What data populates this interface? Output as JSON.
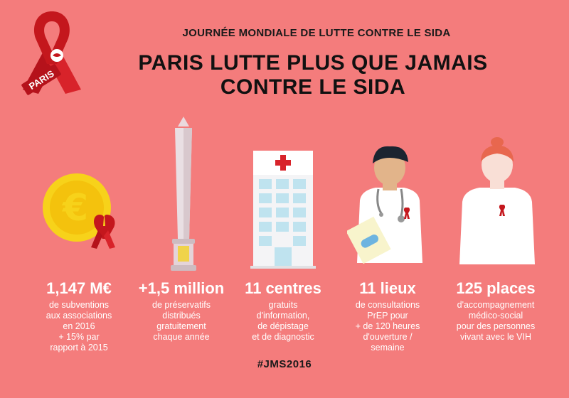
{
  "header": {
    "logo_text": "PARIS",
    "subtitle": "JOURNÉE MONDIALE DE LUTTE CONTRE LE SIDA",
    "title_line1": "PARIS LUTTE PLUS QUE JAMAIS",
    "title_line2": "CONTRE LE SIDA"
  },
  "stats": [
    {
      "value": "1,147 M€",
      "description": "de subventions\naux associations\nen 2016\n+ 15% par\nrapport à 2015"
    },
    {
      "value": "+1,5 million",
      "description": "de préservatifs\ndistribués\ngratuitement\nchaque année"
    },
    {
      "value": "11 centres",
      "description": "gratuits\nd'information,\nde dépistage\net de diagnostic"
    },
    {
      "value": "11 lieux",
      "description": "de consultations\nPrEP pour\n+ de 120 heures\nd'ouverture /\nsemaine"
    },
    {
      "value": "125 places",
      "description": "d'accompagnement\nmédico-social\npour des personnes\nvivant avec le VIH"
    }
  ],
  "icons": [
    "red-ribbon-logo-icon",
    "euro-coin-icon",
    "obelisk-icon",
    "hospital-icon",
    "doctor-icon",
    "nurse-icon"
  ],
  "colors": {
    "background": "#f47c7c",
    "ribbon": "#c4171d",
    "coin": "#f7d21a"
  },
  "footer": {
    "hashtag": "#JMS2016"
  }
}
